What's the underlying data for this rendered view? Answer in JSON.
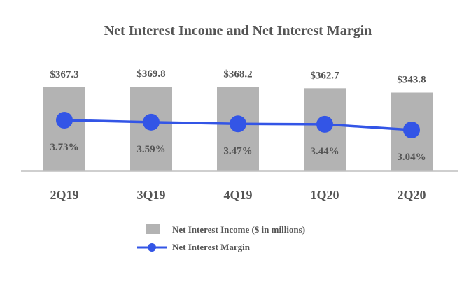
{
  "chart_data": {
    "type": "bar",
    "title": "Net Interest Income and Net Interest Margin",
    "categories": [
      "2Q19",
      "3Q19",
      "4Q19",
      "1Q20",
      "2Q20"
    ],
    "series": [
      {
        "name": "Net Interest Income ($ in millions)",
        "type": "bar",
        "values": [
          367.3,
          369.8,
          368.2,
          362.7,
          343.8
        ],
        "labels": [
          "$367.3",
          "$369.8",
          "$368.2",
          "$362.7",
          "$343.8"
        ],
        "color": "#b3b3b3"
      },
      {
        "name": "Net Interest Margin",
        "type": "line",
        "values": [
          3.73,
          3.59,
          3.47,
          3.44,
          3.04
        ],
        "labels": [
          "3.73%",
          "3.59%",
          "3.47%",
          "3.44%",
          "3.04%"
        ],
        "color": "#3355e6"
      }
    ],
    "legend_position": "bottom-center",
    "grid": false
  }
}
